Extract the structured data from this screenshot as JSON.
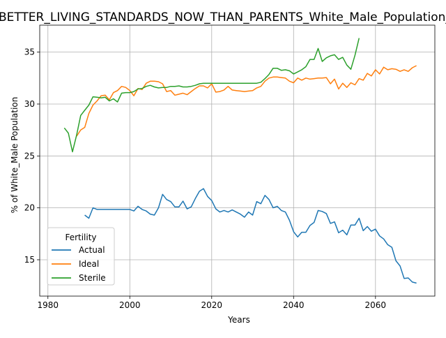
{
  "chart_data": {
    "type": "line",
    "title": "BETTER_LIVING_STANDARDS_NOW_THAN_PARENTS_White_Male_Population_sc",
    "xlabel": "Years",
    "ylabel": "% of White_Male Population",
    "xlim": [
      1978,
      2074.5
    ],
    "ylim": [
      11.5,
      37.6
    ],
    "xticks": [
      1980,
      2000,
      2020,
      2040,
      2060
    ],
    "yticks": [
      15,
      20,
      25,
      30,
      35
    ],
    "grid": true,
    "legend": {
      "title": "Fertility",
      "position": "lower-left"
    },
    "series": [
      {
        "name": "Actual",
        "color": "#1f77b4",
        "points": [
          [
            1989,
            19.3
          ],
          [
            1990,
            19.0
          ],
          [
            1991,
            20.0
          ],
          [
            1992,
            19.85
          ],
          [
            1994,
            19.85
          ],
          [
            1996,
            19.85
          ],
          [
            1998,
            19.85
          ],
          [
            2000,
            19.85
          ],
          [
            2001,
            19.7
          ],
          [
            2002,
            20.15
          ],
          [
            2003,
            19.85
          ],
          [
            2004,
            19.7
          ],
          [
            2005,
            19.4
          ],
          [
            2006,
            19.3
          ],
          [
            2007,
            20.0
          ],
          [
            2008,
            21.3
          ],
          [
            2009,
            20.8
          ],
          [
            2010,
            20.6
          ],
          [
            2011,
            20.1
          ],
          [
            2012,
            20.1
          ],
          [
            2013,
            20.65
          ],
          [
            2014,
            19.9
          ],
          [
            2015,
            20.1
          ],
          [
            2016,
            20.9
          ],
          [
            2017,
            21.6
          ],
          [
            2018,
            21.85
          ],
          [
            2019,
            21.1
          ],
          [
            2020,
            20.7
          ],
          [
            2021,
            19.9
          ],
          [
            2022,
            19.6
          ],
          [
            2023,
            19.75
          ],
          [
            2024,
            19.6
          ],
          [
            2025,
            19.8
          ],
          [
            2026,
            19.6
          ],
          [
            2027,
            19.4
          ],
          [
            2028,
            19.1
          ],
          [
            2029,
            19.6
          ],
          [
            2030,
            19.3
          ],
          [
            2031,
            20.6
          ],
          [
            2032,
            20.4
          ],
          [
            2033,
            21.2
          ],
          [
            2034,
            20.8
          ],
          [
            2035,
            20.0
          ],
          [
            2036,
            20.15
          ],
          [
            2037,
            19.75
          ],
          [
            2038,
            19.6
          ],
          [
            2039,
            18.8
          ],
          [
            2040,
            17.7
          ],
          [
            2041,
            17.2
          ],
          [
            2042,
            17.65
          ],
          [
            2043,
            17.65
          ],
          [
            2044,
            18.3
          ],
          [
            2045,
            18.6
          ],
          [
            2046,
            19.75
          ],
          [
            2047,
            19.65
          ],
          [
            2048,
            19.45
          ],
          [
            2049,
            18.5
          ],
          [
            2050,
            18.65
          ],
          [
            2051,
            17.6
          ],
          [
            2052,
            17.85
          ],
          [
            2053,
            17.4
          ],
          [
            2054,
            18.35
          ],
          [
            2055,
            18.35
          ],
          [
            2056,
            19.0
          ],
          [
            2057,
            17.8
          ],
          [
            2058,
            18.2
          ],
          [
            2059,
            17.75
          ],
          [
            2060,
            17.95
          ],
          [
            2061,
            17.3
          ],
          [
            2062,
            17.0
          ],
          [
            2063,
            16.45
          ],
          [
            2064,
            16.2
          ],
          [
            2065,
            14.9
          ],
          [
            2066,
            14.4
          ],
          [
            2067,
            13.2
          ],
          [
            2068,
            13.25
          ],
          [
            2069,
            12.85
          ],
          [
            2070,
            12.75
          ]
        ]
      },
      {
        "name": "Ideal",
        "color": "#ff7f0e",
        "points": [
          [
            1987,
            26.9
          ],
          [
            1988,
            27.5
          ],
          [
            1989,
            27.75
          ],
          [
            1990,
            29.1
          ],
          [
            1991,
            29.9
          ],
          [
            1992,
            30.3
          ],
          [
            1993,
            30.8
          ],
          [
            1994,
            30.85
          ],
          [
            1995,
            30.4
          ],
          [
            1996,
            31.1
          ],
          [
            1997,
            31.3
          ],
          [
            1998,
            31.7
          ],
          [
            1999,
            31.6
          ],
          [
            2000,
            31.3
          ],
          [
            2001,
            30.8
          ],
          [
            2002,
            31.5
          ],
          [
            2003,
            31.4
          ],
          [
            2004,
            32.0
          ],
          [
            2005,
            32.2
          ],
          [
            2006,
            32.2
          ],
          [
            2007,
            32.15
          ],
          [
            2008,
            31.95
          ],
          [
            2009,
            31.2
          ],
          [
            2010,
            31.3
          ],
          [
            2011,
            30.85
          ],
          [
            2012,
            30.95
          ],
          [
            2013,
            31.05
          ],
          [
            2014,
            30.9
          ],
          [
            2015,
            31.2
          ],
          [
            2016,
            31.5
          ],
          [
            2017,
            31.75
          ],
          [
            2018,
            31.75
          ],
          [
            2019,
            31.55
          ],
          [
            2020,
            31.95
          ],
          [
            2021,
            31.15
          ],
          [
            2022,
            31.2
          ],
          [
            2023,
            31.35
          ],
          [
            2024,
            31.7
          ],
          [
            2025,
            31.35
          ],
          [
            2026,
            31.3
          ],
          [
            2027,
            31.25
          ],
          [
            2028,
            31.2
          ],
          [
            2029,
            31.25
          ],
          [
            2030,
            31.3
          ],
          [
            2031,
            31.55
          ],
          [
            2032,
            31.7
          ],
          [
            2033,
            32.2
          ],
          [
            2034,
            32.5
          ],
          [
            2035,
            32.6
          ],
          [
            2036,
            32.6
          ],
          [
            2037,
            32.55
          ],
          [
            2038,
            32.5
          ],
          [
            2039,
            32.2
          ],
          [
            2040,
            32.05
          ],
          [
            2041,
            32.5
          ],
          [
            2042,
            32.3
          ],
          [
            2043,
            32.5
          ],
          [
            2044,
            32.4
          ],
          [
            2045,
            32.45
          ],
          [
            2046,
            32.5
          ],
          [
            2047,
            32.5
          ],
          [
            2048,
            32.55
          ],
          [
            2049,
            31.95
          ],
          [
            2050,
            32.4
          ],
          [
            2051,
            31.45
          ],
          [
            2052,
            32.0
          ],
          [
            2053,
            31.6
          ],
          [
            2054,
            32.05
          ],
          [
            2055,
            31.85
          ],
          [
            2056,
            32.45
          ],
          [
            2057,
            32.3
          ],
          [
            2058,
            32.95
          ],
          [
            2059,
            32.7
          ],
          [
            2060,
            33.3
          ],
          [
            2061,
            32.9
          ],
          [
            2062,
            33.55
          ],
          [
            2063,
            33.3
          ],
          [
            2064,
            33.4
          ],
          [
            2065,
            33.35
          ],
          [
            2066,
            33.15
          ],
          [
            2067,
            33.3
          ],
          [
            2068,
            33.15
          ],
          [
            2069,
            33.5
          ],
          [
            2070,
            33.7
          ]
        ]
      },
      {
        "name": "Sterile",
        "color": "#2ca02c",
        "points": [
          [
            1984,
            27.7
          ],
          [
            1985,
            27.2
          ],
          [
            1986,
            25.4
          ],
          [
            1987,
            27.0
          ],
          [
            1988,
            28.9
          ],
          [
            1989,
            29.4
          ],
          [
            1990,
            29.9
          ],
          [
            1991,
            30.7
          ],
          [
            1992,
            30.65
          ],
          [
            1993,
            30.6
          ],
          [
            1994,
            30.65
          ],
          [
            1995,
            30.3
          ],
          [
            1996,
            30.5
          ],
          [
            1997,
            30.2
          ],
          [
            1998,
            31.05
          ],
          [
            1999,
            31.1
          ],
          [
            2000,
            31.1
          ],
          [
            2001,
            31.2
          ],
          [
            2002,
            31.45
          ],
          [
            2003,
            31.5
          ],
          [
            2004,
            31.7
          ],
          [
            2005,
            31.8
          ],
          [
            2006,
            31.65
          ],
          [
            2007,
            31.55
          ],
          [
            2008,
            31.6
          ],
          [
            2009,
            31.6
          ],
          [
            2010,
            31.7
          ],
          [
            2011,
            31.7
          ],
          [
            2012,
            31.75
          ],
          [
            2013,
            31.65
          ],
          [
            2014,
            31.65
          ],
          [
            2015,
            31.7
          ],
          [
            2016,
            31.8
          ],
          [
            2017,
            31.95
          ],
          [
            2018,
            32.0
          ],
          [
            2019,
            32.0
          ],
          [
            2020,
            32.0
          ],
          [
            2021,
            32.0
          ],
          [
            2022,
            32.0
          ],
          [
            2023,
            32.0
          ],
          [
            2024,
            32.0
          ],
          [
            2025,
            32.0
          ],
          [
            2026,
            32.0
          ],
          [
            2027,
            32.0
          ],
          [
            2028,
            32.0
          ],
          [
            2029,
            32.0
          ],
          [
            2030,
            32.0
          ],
          [
            2031,
            32.0
          ],
          [
            2032,
            32.1
          ],
          [
            2033,
            32.45
          ],
          [
            2034,
            32.85
          ],
          [
            2035,
            33.45
          ],
          [
            2036,
            33.45
          ],
          [
            2037,
            33.25
          ],
          [
            2038,
            33.3
          ],
          [
            2039,
            33.2
          ],
          [
            2040,
            32.9
          ],
          [
            2041,
            33.1
          ],
          [
            2042,
            33.3
          ],
          [
            2043,
            33.6
          ],
          [
            2044,
            34.3
          ],
          [
            2045,
            34.3
          ],
          [
            2046,
            35.35
          ],
          [
            2047,
            34.1
          ],
          [
            2048,
            34.45
          ],
          [
            2049,
            34.65
          ],
          [
            2050,
            34.75
          ],
          [
            2051,
            34.3
          ],
          [
            2052,
            34.5
          ],
          [
            2053,
            33.75
          ],
          [
            2054,
            33.35
          ],
          [
            2055,
            34.7
          ],
          [
            2056,
            36.35
          ]
        ]
      }
    ]
  }
}
